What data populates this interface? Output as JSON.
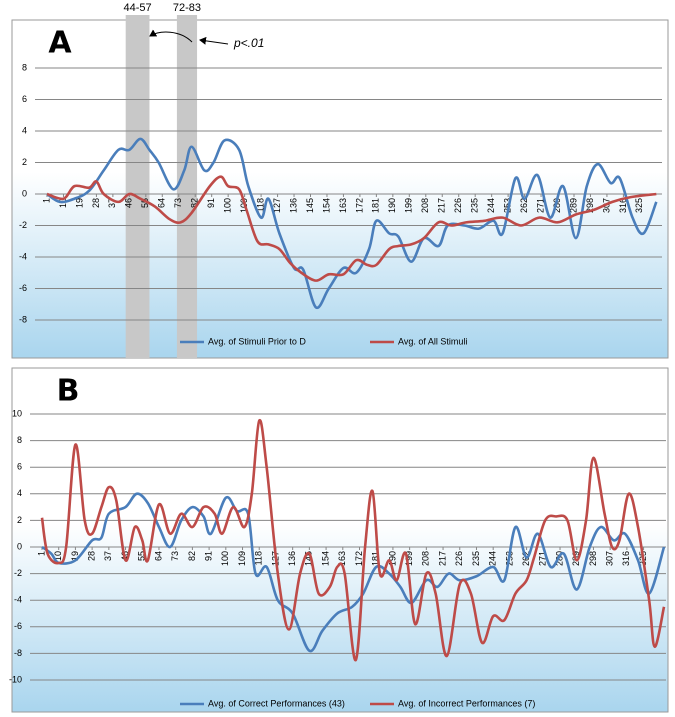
{
  "chart_data": [
    {
      "type": "line",
      "title": "A",
      "xlim": [
        1,
        336
      ],
      "ylim": [
        -8,
        8
      ],
      "yticks": [
        -8,
        -6,
        -4,
        -2,
        0,
        2,
        4,
        6,
        8
      ],
      "xticks": [
        1,
        10,
        19,
        28,
        37,
        46,
        55,
        64,
        73,
        82,
        91,
        100,
        109,
        118,
        127,
        136,
        145,
        154,
        163,
        172,
        181,
        190,
        199,
        208,
        217,
        226,
        235,
        244,
        253,
        262,
        271,
        280,
        289,
        298,
        307,
        316,
        325
      ],
      "grid": true,
      "bands": [
        {
          "label": "44-57",
          "start": 44,
          "end": 57
        },
        {
          "label": "72-83",
          "start": 72,
          "end": 83
        }
      ],
      "annotations": [
        {
          "text": "p<.01"
        }
      ],
      "series": [
        {
          "name": "Avg. of Stimuli  Prior to D",
          "color": "#4a7ebb",
          "x": [
            1,
            8,
            16,
            24,
            32,
            40,
            46,
            52,
            57,
            62,
            70,
            76,
            80,
            87,
            92,
            98,
            106,
            111,
            118,
            122,
            128,
            136,
            141,
            148,
            155,
            163,
            170,
            177,
            181,
            188,
            193,
            200,
            207,
            215,
            220,
            229,
            237,
            245,
            250,
            257,
            262,
            269,
            276,
            283,
            290,
            296,
            302,
            309,
            314,
            321,
            327,
            334
          ],
          "values": [
            0,
            -0.5,
            -0.3,
            0.2,
            1.5,
            2.8,
            2.8,
            3.5,
            2.8,
            2.0,
            0.3,
            1.5,
            3.0,
            1.5,
            2.0,
            3.4,
            2.8,
            0.5,
            -1.5,
            -0.3,
            -2.5,
            -4.7,
            -4.8,
            -7.2,
            -6,
            -4.7,
            -5.0,
            -3.5,
            -1.7,
            -2.5,
            -2.7,
            -4.3,
            -2.8,
            -3.3,
            -2.0,
            -2.0,
            -2.2,
            -1.7,
            -2.5,
            1.0,
            -0.3,
            1.2,
            -1.5,
            0.5,
            -2.8,
            0.5,
            1.9,
            0.7,
            1.0,
            -1.5,
            -2.5,
            -0.5
          ]
        },
        {
          "name": "Avg. of All Stimuli",
          "color": "#be4b48",
          "x": [
            1,
            10,
            16,
            24,
            28,
            32,
            40,
            46,
            52,
            60,
            68,
            74,
            80,
            90,
            96,
            100,
            106,
            110,
            116,
            122,
            128,
            134,
            140,
            148,
            155,
            163,
            170,
            176,
            181,
            188,
            193,
            200,
            207,
            215,
            222,
            230,
            240,
            250,
            260,
            270,
            280,
            290,
            300,
            310,
            320,
            334
          ],
          "values": [
            0,
            -0.3,
            0.5,
            0.4,
            0.8,
            0,
            -0.5,
            0,
            -0.3,
            -0.8,
            -1.6,
            -1.8,
            -1.2,
            0.5,
            1.1,
            0.5,
            0.3,
            -1,
            -3,
            -3.2,
            -3.5,
            -4.4,
            -5,
            -5.5,
            -5.1,
            -5.1,
            -4.2,
            -4.5,
            -4.5,
            -3.5,
            -3.3,
            -3.2,
            -2.8,
            -1.8,
            -2.0,
            -1.8,
            -1.7,
            -1.5,
            -2.0,
            -1.5,
            -1.8,
            -1.3,
            -1.0,
            -0.5,
            -0.2,
            0
          ]
        }
      ]
    },
    {
      "type": "line",
      "title": "B",
      "xlim": [
        1,
        336
      ],
      "ylim": [
        -10,
        10
      ],
      "yticks": [
        -10,
        -8,
        -6,
        -4,
        -2,
        0,
        2,
        4,
        6,
        8,
        10
      ],
      "xticks": [
        1,
        10,
        19,
        28,
        37,
        46,
        55,
        64,
        73,
        82,
        91,
        100,
        109,
        118,
        127,
        136,
        145,
        154,
        163,
        172,
        181,
        190,
        199,
        208,
        217,
        226,
        235,
        244,
        253,
        262,
        271,
        280,
        289,
        298,
        307,
        316,
        325
      ],
      "grid": true,
      "series": [
        {
          "name": "Avg. of Correct Performances (43)",
          "color": "#4a7ebb",
          "x": [
            1,
            6,
            10,
            19,
            28,
            33,
            37,
            46,
            52,
            58,
            64,
            70,
            76,
            82,
            88,
            92,
            100,
            106,
            112,
            116,
            122,
            128,
            136,
            145,
            152,
            160,
            168,
            174,
            181,
            188,
            194,
            200,
            208,
            214,
            220,
            226,
            235,
            244,
            250,
            256,
            262,
            268,
            275,
            282,
            289,
            296,
            302,
            309,
            315,
            322,
            328,
            336
          ],
          "values": [
            0,
            -0.5,
            -1.2,
            -1,
            0.5,
            0.7,
            2.5,
            3,
            4,
            3.3,
            1.5,
            0,
            2,
            3,
            2.3,
            1,
            3.7,
            2.7,
            2.5,
            -2,
            -1.5,
            -4,
            -5,
            -7.8,
            -6.3,
            -5,
            -4.5,
            -3.5,
            -1.5,
            -2,
            -3,
            -4.2,
            -2.5,
            -3,
            -2,
            -2.5,
            -2.2,
            -1.5,
            -2.5,
            1.5,
            -0.8,
            1,
            -1.5,
            -0.5,
            -3.2,
            0,
            1.5,
            0.5,
            1,
            -1,
            -3.5,
            0
          ]
        },
        {
          "name": "Avg. of Incorrect Performances (7)",
          "color": "#be4b48",
          "x": [
            1,
            4,
            10,
            14,
            19,
            24,
            28,
            33,
            37,
            41,
            46,
            51,
            55,
            58,
            64,
            70,
            76,
            82,
            88,
            94,
            98,
            104,
            110,
            114,
            118,
            122,
            128,
            134,
            140,
            145,
            150,
            156,
            160,
            164,
            170,
            175,
            179,
            183,
            188,
            192,
            197,
            202,
            208,
            213,
            219,
            226,
            232,
            238,
            244,
            250,
            256,
            262,
            266,
            272,
            278,
            284,
            289,
            294,
            298,
            304,
            308,
            312,
            317,
            322,
            328,
            331,
            336
          ],
          "values": [
            2.2,
            -0.5,
            -1.2,
            0,
            7.7,
            2,
            1,
            3,
            4.5,
            3.5,
            -1,
            1.5,
            0.5,
            -1,
            3.2,
            1,
            2.5,
            1.5,
            3,
            2.5,
            1,
            3,
            1.5,
            4,
            9.5,
            6,
            -2,
            -6.2,
            -2,
            -0.5,
            -3.5,
            -3,
            -1.5,
            -2,
            -8.5,
            0,
            4.2,
            -2,
            -1,
            -2.5,
            -0.5,
            -5.8,
            -2,
            -3.5,
            -8.2,
            -2.8,
            -3.5,
            -7.2,
            -5.2,
            -5.5,
            -3.5,
            -2.5,
            -0.8,
            2,
            2.3,
            2,
            -1,
            2,
            6.7,
            2.5,
            0,
            0.5,
            4,
            1.5,
            -4,
            -7.5,
            -4.5
          ]
        }
      ]
    }
  ]
}
